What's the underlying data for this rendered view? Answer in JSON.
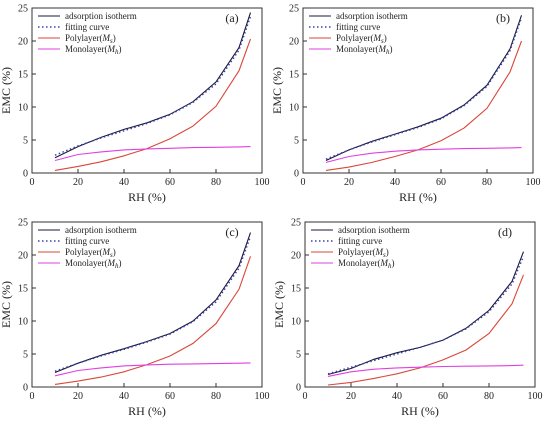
{
  "chart_data": [
    {
      "type": "line",
      "panel_label": "(a)",
      "xlabel": "RH (%)",
      "ylabel": "EMC (%)",
      "xlim": [
        0,
        100
      ],
      "ylim": [
        0,
        25
      ],
      "xticks": [
        0,
        20,
        40,
        60,
        80,
        100
      ],
      "yticks": [
        0,
        5,
        10,
        15,
        20,
        25
      ],
      "legend_position": "top-left",
      "series": [
        {
          "name": "adsorption isotherm",
          "color": "#1a1a3a",
          "style": "solid",
          "x": [
            10,
            20,
            30,
            40,
            50,
            60,
            70,
            80,
            90,
            95
          ],
          "y": [
            2.3,
            4.0,
            5.4,
            6.6,
            7.6,
            8.9,
            10.8,
            13.8,
            19.0,
            24.3
          ]
        },
        {
          "name": "fitting curve",
          "color": "#3a3fb0",
          "style": "dotted",
          "x": [
            10,
            20,
            30,
            40,
            50,
            60,
            70,
            80,
            90,
            95
          ],
          "y": [
            2.7,
            4.1,
            5.3,
            6.4,
            7.5,
            8.8,
            10.7,
            13.5,
            18.6,
            23.7
          ]
        },
        {
          "name": "Polylayer(M_s)",
          "color": "#d9473a",
          "style": "solid",
          "x": [
            10,
            20,
            30,
            40,
            50,
            60,
            70,
            80,
            90,
            95
          ],
          "y": [
            0.4,
            1.0,
            1.7,
            2.6,
            3.7,
            5.2,
            7.1,
            10.1,
            15.5,
            20.3
          ]
        },
        {
          "name": "Monolayer(M_h)",
          "color": "#e040e0",
          "style": "solid",
          "x": [
            10,
            20,
            30,
            40,
            50,
            60,
            70,
            80,
            90,
            95
          ],
          "y": [
            1.9,
            2.8,
            3.2,
            3.5,
            3.65,
            3.75,
            3.85,
            3.9,
            3.95,
            4.0
          ]
        }
      ]
    },
    {
      "type": "line",
      "panel_label": "(b)",
      "xlabel": "RH (%)",
      "ylabel": "EMC (%)",
      "xlim": [
        0,
        100
      ],
      "ylim": [
        0,
        25
      ],
      "xticks": [
        0,
        20,
        40,
        60,
        80,
        100
      ],
      "yticks": [
        0,
        5,
        10,
        15,
        20,
        25
      ],
      "legend_position": "top-left",
      "series": [
        {
          "name": "adsorption isotherm",
          "color": "#1a1a3a",
          "style": "solid",
          "x": [
            10,
            20,
            30,
            40,
            50,
            60,
            70,
            80,
            90,
            95
          ],
          "y": [
            1.9,
            3.5,
            4.8,
            5.9,
            7.0,
            8.3,
            10.3,
            13.3,
            18.8,
            23.9
          ]
        },
        {
          "name": "fitting curve",
          "color": "#3a3fb0",
          "style": "dotted",
          "x": [
            10,
            20,
            30,
            40,
            50,
            60,
            70,
            80,
            90,
            95
          ],
          "y": [
            2.1,
            3.5,
            4.7,
            5.8,
            6.9,
            8.2,
            10.2,
            13.1,
            18.5,
            23.5
          ]
        },
        {
          "name": "Polylayer(M_s)",
          "color": "#d9473a",
          "style": "solid",
          "x": [
            10,
            20,
            30,
            40,
            50,
            60,
            70,
            80,
            90,
            95
          ],
          "y": [
            0.4,
            0.9,
            1.6,
            2.5,
            3.5,
            4.9,
            6.8,
            9.8,
            15.3,
            20.0
          ]
        },
        {
          "name": "Monolayer(M_h)",
          "color": "#e040e0",
          "style": "solid",
          "x": [
            10,
            20,
            30,
            40,
            50,
            60,
            70,
            80,
            90,
            95
          ],
          "y": [
            1.6,
            2.5,
            3.0,
            3.3,
            3.5,
            3.6,
            3.7,
            3.75,
            3.8,
            3.85
          ]
        }
      ]
    },
    {
      "type": "line",
      "panel_label": "(c)",
      "xlabel": "RH (%)",
      "ylabel": "EMC (%)",
      "xlim": [
        0,
        100
      ],
      "ylim": [
        0,
        25
      ],
      "xticks": [
        0,
        20,
        40,
        60,
        80,
        100
      ],
      "yticks": [
        0,
        5,
        10,
        15,
        20,
        25
      ],
      "legend_position": "top-left",
      "series": [
        {
          "name": "adsorption isotherm",
          "color": "#1a1a3a",
          "style": "solid",
          "x": [
            10,
            20,
            30,
            40,
            50,
            60,
            70,
            80,
            90,
            95
          ],
          "y": [
            2.2,
            3.6,
            4.8,
            5.8,
            6.9,
            8.1,
            10.0,
            13.2,
            18.4,
            23.4
          ]
        },
        {
          "name": "fitting curve",
          "color": "#3a3fb0",
          "style": "dotted",
          "x": [
            10,
            20,
            30,
            40,
            50,
            60,
            70,
            80,
            90,
            95
          ],
          "y": [
            2.4,
            3.6,
            4.7,
            5.7,
            6.8,
            8.0,
            9.9,
            12.9,
            18.0,
            22.8
          ]
        },
        {
          "name": "Polylayer(M_s)",
          "color": "#d9473a",
          "style": "solid",
          "x": [
            10,
            20,
            30,
            40,
            50,
            60,
            70,
            80,
            90,
            95
          ],
          "y": [
            0.4,
            0.9,
            1.5,
            2.3,
            3.4,
            4.7,
            6.6,
            9.6,
            14.8,
            19.8
          ]
        },
        {
          "name": "Monolayer(M_h)",
          "color": "#e040e0",
          "style": "solid",
          "x": [
            10,
            20,
            30,
            40,
            50,
            60,
            70,
            80,
            90,
            95
          ],
          "y": [
            1.7,
            2.5,
            2.9,
            3.2,
            3.35,
            3.45,
            3.5,
            3.55,
            3.6,
            3.65
          ]
        }
      ]
    },
    {
      "type": "line",
      "panel_label": "(d)",
      "xlabel": "RH (%)",
      "ylabel": "EMC (%)",
      "xlim": [
        0,
        100
      ],
      "ylim": [
        0,
        25
      ],
      "xticks": [
        0,
        20,
        40,
        60,
        80,
        100
      ],
      "yticks": [
        0,
        5,
        10,
        15,
        20,
        25
      ],
      "legend_position": "top-left",
      "series": [
        {
          "name": "adsorption isotherm",
          "color": "#1a1a3a",
          "style": "solid",
          "x": [
            10,
            20,
            30,
            40,
            50,
            60,
            70,
            80,
            90,
            95
          ],
          "y": [
            1.9,
            2.8,
            4.2,
            5.2,
            6.0,
            7.1,
            8.9,
            11.6,
            16.0,
            20.5
          ]
        },
        {
          "name": "fitting curve",
          "color": "#3a3fb0",
          "style": "dotted",
          "x": [
            10,
            20,
            30,
            40,
            50,
            60,
            70,
            80,
            90,
            95
          ],
          "y": [
            2.0,
            3.0,
            4.0,
            5.0,
            6.0,
            7.1,
            8.8,
            11.4,
            15.6,
            19.8
          ]
        },
        {
          "name": "Polylayer(M_s)",
          "color": "#d9473a",
          "style": "solid",
          "x": [
            10,
            20,
            30,
            40,
            50,
            60,
            70,
            80,
            90,
            95
          ],
          "y": [
            0.3,
            0.7,
            1.3,
            2.0,
            2.9,
            4.1,
            5.6,
            8.1,
            12.6,
            17.0
          ]
        },
        {
          "name": "Monolayer(M_h)",
          "color": "#e040e0",
          "style": "solid",
          "x": [
            10,
            20,
            30,
            40,
            50,
            60,
            70,
            80,
            90,
            95
          ],
          "y": [
            1.6,
            2.3,
            2.7,
            2.9,
            3.0,
            3.1,
            3.15,
            3.2,
            3.25,
            3.3
          ]
        }
      ]
    }
  ]
}
